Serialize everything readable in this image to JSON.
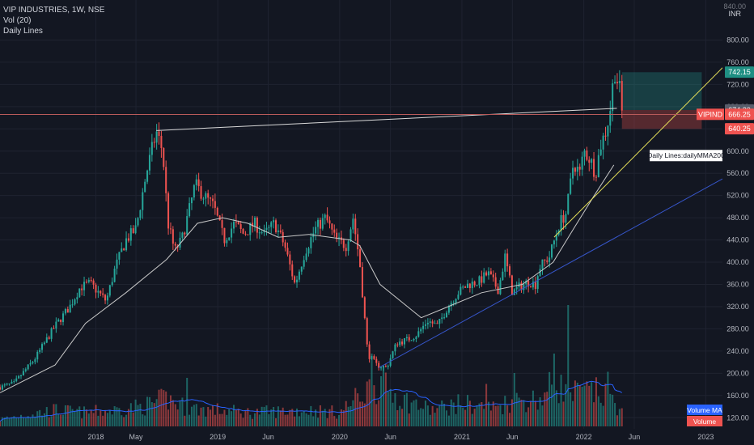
{
  "header": {
    "symbol": "VIP INDUSTRIES, 1W, NSE",
    "indicator1": "Vol (20)",
    "indicator2": "Daily Lines"
  },
  "currency": {
    "line1": "840.00",
    "line2": "INR"
  },
  "colors": {
    "background": "#131722",
    "up": "#26a69a",
    "down": "#ef5350",
    "grid": "#1f2330",
    "ma": "#c8c8c8",
    "trend_yellow": "#e6e05a",
    "trend_blue": "#3655c9",
    "trend_white": "#d8d8d8",
    "hline": "#b85a5a"
  },
  "chart_data": {
    "type": "candlestick",
    "title": "VIP INDUSTRIES, 1W, NSE",
    "y_ticks": [
      120,
      160,
      200,
      240,
      280,
      320,
      360,
      400,
      440,
      480,
      520,
      560,
      600,
      640,
      680,
      720,
      760,
      800
    ],
    "ylim": [
      100,
      840
    ],
    "x_ticks": [
      "2018",
      "May",
      "2019",
      "Jun",
      "2020",
      "Jun",
      "2021",
      "Jun",
      "2022",
      "Jun",
      "2023"
    ],
    "x_tick_dates": [
      "2018-01-01",
      "2018-05-01",
      "2019-01-01",
      "2019-06-01",
      "2020-01-01",
      "2020-06-01",
      "2021-01-01",
      "2021-06-01",
      "2022-01-01",
      "2022-06-01",
      "2023-01-01"
    ],
    "x_range": [
      "2017-03-20",
      "2023-02-20"
    ],
    "price_anchors": [
      [
        "2017-03-20",
        175
      ],
      [
        "2017-05-01",
        182
      ],
      [
        "2017-07-01",
        225
      ],
      [
        "2017-09-01",
        285
      ],
      [
        "2017-10-15",
        320
      ],
      [
        "2017-11-15",
        355
      ],
      [
        "2017-12-15",
        362
      ],
      [
        "2018-02-01",
        330
      ],
      [
        "2018-03-01",
        392
      ],
      [
        "2018-04-01",
        440
      ],
      [
        "2018-05-01",
        460
      ],
      [
        "2018-06-01",
        560
      ],
      [
        "2018-07-01",
        635
      ],
      [
        "2018-07-20",
        600
      ],
      [
        "2018-08-05",
        470
      ],
      [
        "2018-08-25",
        420
      ],
      [
        "2018-09-15",
        440
      ],
      [
        "2018-10-10",
        500
      ],
      [
        "2018-10-25",
        540
      ],
      [
        "2018-11-20",
        520
      ],
      [
        "2018-12-20",
        500
      ],
      [
        "2019-01-20",
        440
      ],
      [
        "2019-02-20",
        470
      ],
      [
        "2019-03-20",
        450
      ],
      [
        "2019-04-20",
        470
      ],
      [
        "2019-05-20",
        450
      ],
      [
        "2019-06-20",
        470
      ],
      [
        "2019-07-20",
        430
      ],
      [
        "2019-08-20",
        360
      ],
      [
        "2019-09-20",
        420
      ],
      [
        "2019-10-20",
        460
      ],
      [
        "2019-11-20",
        480
      ],
      [
        "2019-12-20",
        440
      ],
      [
        "2020-01-20",
        430
      ],
      [
        "2020-02-10",
        480
      ],
      [
        "2020-03-01",
        400
      ],
      [
        "2020-03-25",
        235
      ],
      [
        "2020-04-20",
        215
      ],
      [
        "2020-05-20",
        210
      ],
      [
        "2020-06-20",
        255
      ],
      [
        "2020-07-20",
        260
      ],
      [
        "2020-08-20",
        270
      ],
      [
        "2020-09-20",
        295
      ],
      [
        "2020-10-20",
        285
      ],
      [
        "2020-11-20",
        320
      ],
      [
        "2020-12-20",
        345
      ],
      [
        "2021-01-20",
        360
      ],
      [
        "2021-02-20",
        365
      ],
      [
        "2021-03-20",
        380
      ],
      [
        "2021-04-20",
        350
      ],
      [
        "2021-05-10",
        410
      ],
      [
        "2021-06-01",
        345
      ],
      [
        "2021-06-20",
        355
      ],
      [
        "2021-07-20",
        365
      ],
      [
        "2021-08-10",
        360
      ],
      [
        "2021-08-20",
        390
      ],
      [
        "2021-09-20",
        410
      ],
      [
        "2021-10-20",
        470
      ],
      [
        "2021-11-10",
        490
      ],
      [
        "2021-12-01",
        580
      ],
      [
        "2021-12-20",
        560
      ],
      [
        "2022-01-01",
        600
      ],
      [
        "2022-01-20",
        585
      ],
      [
        "2022-02-05",
        560
      ],
      [
        "2022-02-20",
        610
      ],
      [
        "2022-03-10",
        640
      ],
      [
        "2022-03-25",
        690
      ],
      [
        "2022-04-01",
        750
      ],
      [
        "2022-04-10",
        730
      ],
      [
        "2022-04-18",
        710
      ],
      [
        "2022-04-25",
        670
      ]
    ],
    "volume_anchors": [
      [
        "2017-03-20",
        6
      ],
      [
        "2017-06-01",
        10
      ],
      [
        "2017-09-01",
        14
      ],
      [
        "2017-12-01",
        12
      ],
      [
        "2018-03-01",
        14
      ],
      [
        "2018-06-01",
        18
      ],
      [
        "2018-08-01",
        24
      ],
      [
        "2018-10-01",
        16
      ],
      [
        "2019-01-01",
        14
      ],
      [
        "2019-04-01",
        12
      ],
      [
        "2019-07-01",
        13
      ],
      [
        "2019-10-01",
        14
      ],
      [
        "2020-01-01",
        12
      ],
      [
        "2020-03-15",
        30
      ],
      [
        "2020-05-01",
        38
      ],
      [
        "2020-07-01",
        24
      ],
      [
        "2020-10-01",
        14
      ],
      [
        "2021-01-01",
        20
      ],
      [
        "2021-04-01",
        16
      ],
      [
        "2021-06-01",
        22
      ],
      [
        "2021-09-01",
        24
      ],
      [
        "2021-10-01",
        38
      ],
      [
        "2021-12-01",
        28
      ],
      [
        "2022-02-01",
        30
      ],
      [
        "2022-04-01",
        22
      ],
      [
        "2022-04-25",
        12
      ]
    ],
    "volume_spikes": [
      [
        "2018-10-01",
        40
      ],
      [
        "2020-04-06",
        60
      ],
      [
        "2021-03-15",
        35
      ],
      [
        "2021-06-07",
        44
      ],
      [
        "2021-10-04",
        60
      ],
      [
        "2021-11-15",
        100
      ],
      [
        "2022-03-14",
        45
      ]
    ],
    "moving_average": [
      [
        "2017-03-20",
        165
      ],
      [
        "2017-09-01",
        215
      ],
      [
        "2017-12-01",
        290
      ],
      [
        "2018-04-01",
        345
      ],
      [
        "2018-08-01",
        405
      ],
      [
        "2018-11-01",
        470
      ],
      [
        "2019-01-15",
        480
      ],
      [
        "2019-04-01",
        470
      ],
      [
        "2019-07-01",
        445
      ],
      [
        "2019-10-01",
        450
      ],
      [
        "2020-02-01",
        440
      ],
      [
        "2020-03-01",
        430
      ],
      [
        "2020-05-01",
        360
      ],
      [
        "2020-09-01",
        300
      ],
      [
        "2020-11-01",
        315
      ],
      [
        "2021-03-01",
        345
      ],
      [
        "2021-07-01",
        360
      ],
      [
        "2021-10-01",
        400
      ],
      [
        "2021-12-01",
        460
      ],
      [
        "2022-02-01",
        520
      ],
      [
        "2022-04-01",
        575
      ]
    ],
    "trendlines": [
      {
        "style": "white",
        "from": [
          "2018-07-01",
          637
        ],
        "to": [
          "2022-04-10",
          677
        ]
      },
      {
        "style": "yellow",
        "from": [
          "2021-10-04",
          445
        ],
        "to": [
          "2023-02-20",
          750
        ]
      },
      {
        "style": "blue",
        "from": [
          "2020-04-27",
          210
        ],
        "to": [
          "2023-02-20",
          550
        ]
      }
    ],
    "hline": 666,
    "positions": {
      "target_box": {
        "from": "2022-04-25",
        "to": "2022-12-20",
        "low": 674,
        "high": 742
      },
      "stop_box": {
        "from": "2022-04-25",
        "to": "2022-12-20",
        "low": 640,
        "high": 674
      }
    },
    "price_tags": [
      {
        "label": "742.15",
        "value": 742.15,
        "color": "#1f8f83"
      },
      {
        "label": "674.20",
        "value": 674.2,
        "color": "#585d6b"
      },
      {
        "label": "666.25",
        "value": 666.25,
        "color": "#ef5350",
        "prefix": "VIPIND"
      },
      {
        "label": "640.25",
        "value": 640.25,
        "color": "#ef5350"
      }
    ],
    "annotation": {
      "text": "Daily Lines:dailyMMA200",
      "value": 592
    },
    "volume_labels": [
      {
        "text": "Volume MA",
        "color": "#2962ff"
      },
      {
        "text": "Volume",
        "color": "#ef5350"
      }
    ]
  }
}
